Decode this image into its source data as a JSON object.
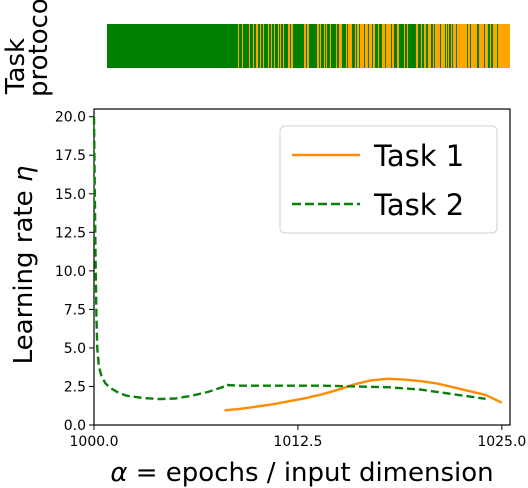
{
  "protocol_label_lines": [
    "Task",
    "protocol"
  ],
  "chart_data": {
    "type": "line",
    "xlabel_symbol": "α",
    "xlabel_rest": " = epochs / input dimension",
    "ylabel_text": "Learning rate ",
    "ylabel_symbol": "η",
    "xlim": [
      1000,
      1025.5
    ],
    "ylim": [
      0,
      20.5
    ],
    "xticks": [
      {
        "value": 1000,
        "label": "1000.0"
      },
      {
        "value": 1012.5,
        "label": "1012.5"
      },
      {
        "value": 1025,
        "label": "1025.0"
      }
    ],
    "yticks": [
      {
        "value": 0,
        "label": "0.0"
      },
      {
        "value": 2.5,
        "label": "2.5"
      },
      {
        "value": 5,
        "label": "5.0"
      },
      {
        "value": 7.5,
        "label": "7.5"
      },
      {
        "value": 10,
        "label": "10.0"
      },
      {
        "value": 12.5,
        "label": "12.5"
      },
      {
        "value": 15,
        "label": "15.0"
      },
      {
        "value": 17.5,
        "label": "17.5"
      },
      {
        "value": 20,
        "label": "20.0"
      }
    ],
    "legend_position": "top-right",
    "series": [
      {
        "name": "Task 1",
        "color": "#ff8c00",
        "style": "solid",
        "x": [
          1008,
          1009,
          1010,
          1011,
          1012,
          1013,
          1014,
          1015,
          1016,
          1017,
          1018,
          1019,
          1020,
          1021,
          1022,
          1023,
          1024,
          1025
        ],
        "y": [
          0.95,
          1.05,
          1.2,
          1.35,
          1.55,
          1.75,
          2.0,
          2.3,
          2.65,
          2.9,
          3.0,
          2.95,
          2.85,
          2.7,
          2.45,
          2.2,
          1.95,
          1.45
        ]
      },
      {
        "name": "Task 2",
        "color": "#0a800a",
        "style": "dashed",
        "x": [
          1000,
          1000.05,
          1000.1,
          1000.15,
          1000.2,
          1000.3,
          1000.45,
          1000.7,
          1001,
          1001.5,
          1002,
          1003,
          1004,
          1005,
          1006,
          1007,
          1008,
          1008.05,
          1009,
          1010,
          1012,
          1014,
          1016,
          1018,
          1020,
          1022,
          1024
        ],
        "y": [
          20.0,
          15.0,
          10.5,
          7.0,
          5.0,
          3.8,
          3.2,
          2.7,
          2.4,
          2.1,
          1.9,
          1.75,
          1.68,
          1.72,
          1.9,
          2.15,
          2.5,
          2.6,
          2.55,
          2.55,
          2.55,
          2.55,
          2.5,
          2.45,
          2.3,
          2.0,
          1.7
        ]
      }
    ]
  },
  "protocol_strip": {
    "task1_color": "#ffa500",
    "task2_color": "#008000",
    "x_start": 1000,
    "x_end": 1025,
    "task2_only_until": 1008,
    "task1_tail_from": 1024.3,
    "task1_probability_start": 0.2,
    "task1_probability_end": 0.65
  }
}
